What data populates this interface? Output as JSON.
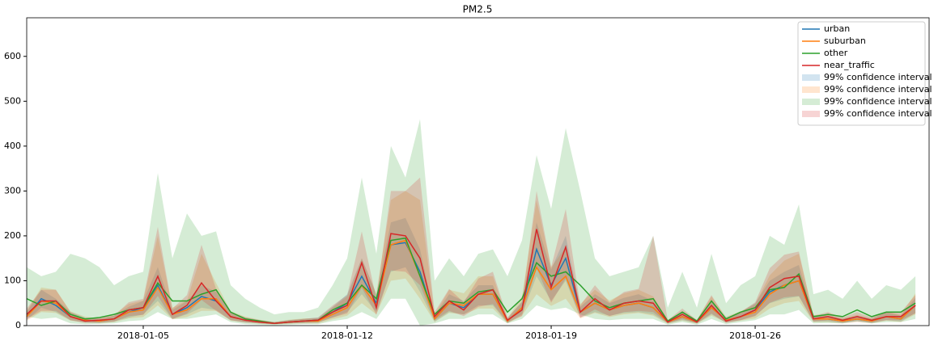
{
  "chart_data": {
    "type": "line",
    "title": "PM2.5",
    "categories": [
      null,
      null,
      null,
      null,
      null,
      null,
      null,
      null,
      "2018-01-05",
      null,
      null,
      null,
      null,
      null,
      null,
      null,
      null,
      null,
      null,
      null,
      null,
      null,
      "2018-01-12",
      null,
      null,
      null,
      null,
      null,
      null,
      null,
      null,
      null,
      null,
      null,
      null,
      null,
      "2018-01-19",
      null,
      null,
      null,
      null,
      null,
      null,
      null,
      null,
      null,
      null,
      null,
      null,
      null,
      "2018-01-26",
      null,
      null,
      null,
      null,
      null,
      null,
      null,
      null,
      null,
      null,
      null
    ],
    "ylim": [
      0,
      686
    ],
    "yticks": [
      0,
      100,
      200,
      300,
      400,
      500,
      600
    ],
    "band_opacity": 0.2,
    "legend": "upper right",
    "series": [
      {
        "name": "urban",
        "color": "#1f77b4",
        "ci_name": "99% confidence interval",
        "values": [
          20,
          60,
          45,
          20,
          12,
          10,
          15,
          30,
          40,
          90,
          25,
          40,
          65,
          55,
          20,
          12,
          8,
          5,
          8,
          10,
          12,
          30,
          50,
          110,
          50,
          180,
          185,
          120,
          15,
          50,
          40,
          70,
          70,
          10,
          40,
          170,
          90,
          150,
          30,
          50,
          35,
          45,
          50,
          40,
          8,
          20,
          8,
          40,
          12,
          20,
          35,
          75,
          90,
          100,
          15,
          15,
          10,
          15,
          10,
          20,
          15,
          45
        ],
        "upper": [
          30,
          80,
          60,
          30,
          18,
          15,
          22,
          42,
          55,
          130,
          35,
          55,
          90,
          75,
          30,
          18,
          12,
          8,
          12,
          15,
          18,
          42,
          70,
          150,
          70,
          230,
          240,
          170,
          22,
          70,
          55,
          90,
          90,
          15,
          55,
          230,
          125,
          200,
          42,
          70,
          50,
          62,
          70,
          55,
          12,
          30,
          12,
          55,
          18,
          30,
          50,
          100,
          120,
          135,
          22,
          22,
          15,
          22,
          15,
          30,
          22,
          62
        ],
        "lower": [
          12,
          40,
          30,
          12,
          7,
          6,
          9,
          18,
          25,
          55,
          15,
          25,
          40,
          35,
          12,
          7,
          5,
          3,
          5,
          6,
          7,
          18,
          30,
          70,
          30,
          120,
          130,
          75,
          9,
          30,
          25,
          45,
          45,
          6,
          25,
          110,
          55,
          100,
          18,
          30,
          22,
          28,
          30,
          25,
          5,
          12,
          5,
          25,
          7,
          12,
          22,
          50,
          60,
          65,
          9,
          9,
          6,
          9,
          6,
          12,
          9,
          28
        ]
      },
      {
        "name": "suburban",
        "color": "#ff7f0e",
        "ci_name": "99% confidence interval",
        "values": [
          20,
          55,
          50,
          20,
          12,
          10,
          15,
          30,
          35,
          85,
          25,
          35,
          60,
          60,
          20,
          12,
          8,
          5,
          8,
          10,
          10,
          25,
          40,
          90,
          45,
          180,
          190,
          110,
          15,
          50,
          45,
          70,
          70,
          10,
          40,
          130,
          80,
          110,
          30,
          50,
          35,
          45,
          50,
          40,
          8,
          20,
          8,
          40,
          12,
          20,
          30,
          70,
          90,
          100,
          15,
          15,
          10,
          15,
          10,
          20,
          15,
          45
        ],
        "upper": [
          32,
          85,
          80,
          32,
          20,
          16,
          24,
          48,
          56,
          200,
          40,
          56,
          160,
          95,
          32,
          20,
          13,
          8,
          13,
          16,
          16,
          40,
          65,
          150,
          72,
          280,
          300,
          280,
          24,
          80,
          72,
          110,
          110,
          16,
          65,
          280,
          130,
          175,
          48,
          80,
          56,
          72,
          80,
          65,
          13,
          32,
          13,
          65,
          20,
          32,
          48,
          112,
          145,
          160,
          24,
          24,
          16,
          24,
          16,
          32,
          24,
          72
        ],
        "lower": [
          11,
          30,
          28,
          11,
          7,
          5,
          8,
          16,
          19,
          45,
          14,
          19,
          33,
          33,
          11,
          7,
          4,
          3,
          4,
          5,
          5,
          14,
          22,
          50,
          25,
          100,
          105,
          60,
          8,
          28,
          25,
          38,
          38,
          5,
          22,
          70,
          44,
          60,
          16,
          28,
          19,
          25,
          28,
          22,
          4,
          11,
          4,
          22,
          7,
          11,
          16,
          38,
          50,
          55,
          8,
          8,
          5,
          8,
          5,
          11,
          8,
          25
        ]
      },
      {
        "name": "other",
        "color": "#2ca02c",
        "ci_name": "99% confidence interval",
        "values": [
          60,
          45,
          55,
          25,
          15,
          18,
          25,
          35,
          40,
          95,
          55,
          55,
          70,
          80,
          30,
          15,
          10,
          5,
          8,
          10,
          12,
          35,
          50,
          90,
          60,
          190,
          195,
          110,
          25,
          55,
          50,
          75,
          80,
          30,
          60,
          140,
          110,
          120,
          90,
          55,
          40,
          50,
          55,
          60,
          10,
          30,
          10,
          55,
          15,
          30,
          40,
          80,
          85,
          115,
          20,
          25,
          20,
          35,
          20,
          30,
          30,
          50
        ],
        "upper": [
          130,
          110,
          120,
          160,
          150,
          130,
          90,
          110,
          120,
          340,
          150,
          250,
          200,
          210,
          90,
          60,
          40,
          25,
          30,
          30,
          40,
          90,
          150,
          330,
          160,
          400,
          330,
          460,
          100,
          150,
          110,
          160,
          170,
          110,
          190,
          380,
          260,
          440,
          300,
          150,
          110,
          120,
          130,
          200,
          40,
          120,
          40,
          160,
          50,
          90,
          110,
          200,
          180,
          270,
          70,
          80,
          60,
          100,
          60,
          90,
          80,
          110
        ],
        "lower": [
          20,
          15,
          18,
          5,
          3,
          4,
          5,
          10,
          12,
          30,
          15,
          15,
          20,
          25,
          8,
          3,
          2,
          1,
          2,
          3,
          3,
          10,
          15,
          30,
          15,
          60,
          60,
          0,
          5,
          15,
          15,
          25,
          25,
          5,
          15,
          45,
          35,
          40,
          25,
          15,
          12,
          15,
          15,
          15,
          2,
          8,
          2,
          15,
          3,
          8,
          12,
          25,
          25,
          35,
          5,
          6,
          5,
          10,
          5,
          8,
          8,
          15
        ]
      },
      {
        "name": "near_traffic",
        "color": "#d62728",
        "ci_name": "99% confidence interval",
        "values": [
          25,
          55,
          55,
          20,
          10,
          12,
          15,
          35,
          40,
          110,
          25,
          45,
          95,
          55,
          20,
          12,
          8,
          5,
          8,
          10,
          12,
          30,
          45,
          140,
          40,
          205,
          200,
          150,
          20,
          55,
          35,
          70,
          80,
          12,
          35,
          215,
          85,
          175,
          30,
          60,
          35,
          50,
          55,
          50,
          8,
          25,
          8,
          45,
          10,
          20,
          35,
          85,
          105,
          110,
          15,
          20,
          12,
          20,
          12,
          20,
          20,
          45
        ],
        "upper": [
          38,
          80,
          80,
          30,
          15,
          18,
          22,
          52,
          60,
          220,
          38,
          68,
          180,
          82,
          30,
          18,
          12,
          8,
          12,
          15,
          18,
          45,
          68,
          210,
          60,
          300,
          300,
          330,
          30,
          82,
          52,
          105,
          120,
          18,
          52,
          300,
          130,
          260,
          45,
          90,
          52,
          75,
          82,
          200,
          12,
          38,
          12,
          68,
          15,
          30,
          52,
          128,
          158,
          165,
          22,
          30,
          18,
          30,
          18,
          30,
          30,
          68
        ],
        "lower": [
          15,
          33,
          33,
          12,
          6,
          7,
          9,
          21,
          24,
          66,
          15,
          27,
          57,
          33,
          12,
          7,
          5,
          3,
          5,
          6,
          7,
          18,
          27,
          84,
          24,
          123,
          120,
          90,
          12,
          33,
          21,
          42,
          48,
          7,
          21,
          129,
          51,
          105,
          18,
          36,
          21,
          30,
          33,
          30,
          5,
          15,
          5,
          27,
          6,
          12,
          21,
          51,
          63,
          66,
          9,
          12,
          7,
          12,
          7,
          12,
          12,
          27
        ]
      }
    ]
  }
}
